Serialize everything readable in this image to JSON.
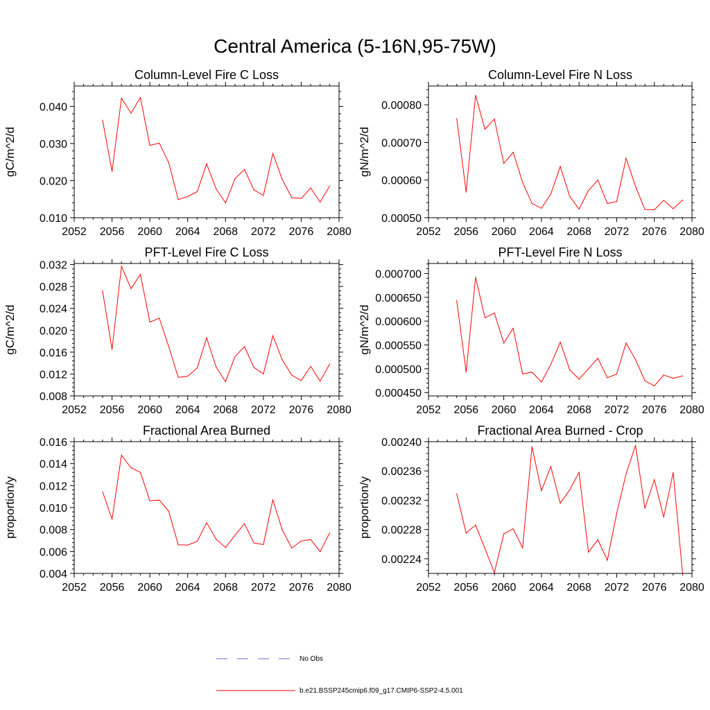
{
  "figure_title": "Central America (5-16N,95-75W)",
  "legend": {
    "entries": [
      {
        "label": "No Obs",
        "color": "#6a6ad8",
        "dash": true
      },
      {
        "label": "b.e21.BSSP245cmip6.f09_g17.CMIP6-SSP2-4.5.001",
        "color": "#ff0000",
        "dash": false
      }
    ]
  },
  "colors": {
    "series": "#ff0000",
    "frame": "#000000"
  },
  "chart_data": [
    {
      "type": "line",
      "title": "Column-Level Fire C Loss",
      "xlabel": "",
      "ylabel": "gC/m^2/d",
      "xlim": [
        2052,
        2080
      ],
      "ylim": [
        0.01,
        0.0455
      ],
      "xticks": [
        2052,
        2056,
        2060,
        2064,
        2068,
        2072,
        2076,
        2080
      ],
      "xtick_labels": [
        "2052",
        "2056",
        "2060",
        "2064",
        "2068",
        "2072",
        "2076",
        "2080"
      ],
      "yticks": [
        0.01,
        0.02,
        0.03,
        0.04
      ],
      "ytick_labels": [
        "0.010",
        "0.020",
        "0.030",
        "0.040"
      ],
      "x": [
        2055,
        2056,
        2057,
        2058,
        2059,
        2060,
        2061,
        2062,
        2063,
        2064,
        2065,
        2066,
        2067,
        2068,
        2069,
        2070,
        2071,
        2072,
        2073,
        2074,
        2075,
        2076,
        2077,
        2078,
        2079
      ],
      "y": [
        0.0363,
        0.0225,
        0.0422,
        0.0382,
        0.0424,
        0.0295,
        0.0301,
        0.0248,
        0.0149,
        0.0157,
        0.017,
        0.0245,
        0.0178,
        0.014,
        0.0205,
        0.023,
        0.0175,
        0.016,
        0.0273,
        0.0203,
        0.0154,
        0.0152,
        0.018,
        0.0142,
        0.0185
      ]
    },
    {
      "type": "line",
      "title": "Column-Level Fire N Loss",
      "xlabel": "",
      "ylabel": "gN/m^2/d",
      "xlim": [
        2052,
        2080
      ],
      "ylim": [
        0.0005,
        0.00085
      ],
      "xticks": [
        2052,
        2056,
        2060,
        2064,
        2068,
        2072,
        2076,
        2080
      ],
      "xtick_labels": [
        "2052",
        "2056",
        "2060",
        "2064",
        "2068",
        "2072",
        "2076",
        "2080"
      ],
      "yticks": [
        0.0005,
        0.0006,
        0.0007,
        0.0008
      ],
      "ytick_labels": [
        "0.00050",
        "0.00060",
        "0.00070",
        "0.00080"
      ],
      "x": [
        2055,
        2056,
        2057,
        2058,
        2059,
        2060,
        2061,
        2062,
        2063,
        2064,
        2065,
        2066,
        2067,
        2068,
        2069,
        2070,
        2071,
        2072,
        2073,
        2074,
        2075,
        2076,
        2077,
        2078,
        2079
      ],
      "y": [
        0.000763,
        0.000568,
        0.000825,
        0.000735,
        0.000762,
        0.000644,
        0.000674,
        0.000594,
        0.000538,
        0.000525,
        0.000563,
        0.000636,
        0.000557,
        0.000523,
        0.000572,
        0.0006,
        0.000538,
        0.000543,
        0.000658,
        0.000583,
        0.000522,
        0.000521,
        0.000546,
        0.000524,
        0.000547
      ]
    },
    {
      "type": "line",
      "title": "PFT-Level Fire C Loss",
      "xlabel": "",
      "ylabel": "gC/m^2/d",
      "xlim": [
        2052,
        2080
      ],
      "ylim": [
        0.008,
        0.0322
      ],
      "xticks": [
        2052,
        2056,
        2060,
        2064,
        2068,
        2072,
        2076,
        2080
      ],
      "xtick_labels": [
        "2052",
        "2056",
        "2060",
        "2064",
        "2068",
        "2072",
        "2076",
        "2080"
      ],
      "yticks": [
        0.008,
        0.012,
        0.016,
        0.02,
        0.024,
        0.028,
        0.032
      ],
      "ytick_labels": [
        "0.008",
        "0.012",
        "0.016",
        "0.020",
        "0.024",
        "0.028",
        "0.032"
      ],
      "x": [
        2055,
        2056,
        2057,
        2058,
        2059,
        2060,
        2061,
        2062,
        2063,
        2064,
        2065,
        2066,
        2067,
        2068,
        2069,
        2070,
        2071,
        2072,
        2073,
        2074,
        2075,
        2076,
        2077,
        2078,
        2079
      ],
      "y": [
        0.0272,
        0.0165,
        0.0317,
        0.0276,
        0.0302,
        0.0215,
        0.0222,
        0.017,
        0.0114,
        0.0116,
        0.0131,
        0.0186,
        0.0133,
        0.0106,
        0.0152,
        0.017,
        0.0132,
        0.012,
        0.019,
        0.0146,
        0.0118,
        0.0108,
        0.0134,
        0.0107,
        0.0138
      ]
    },
    {
      "type": "line",
      "title": "PFT-Level Fire N Loss",
      "xlabel": "",
      "ylabel": "gN/m^2/d",
      "xlim": [
        2052,
        2080
      ],
      "ylim": [
        0.000443,
        0.000721
      ],
      "xticks": [
        2052,
        2056,
        2060,
        2064,
        2068,
        2072,
        2076,
        2080
      ],
      "xtick_labels": [
        "2052",
        "2056",
        "2060",
        "2064",
        "2068",
        "2072",
        "2076",
        "2080"
      ],
      "yticks": [
        0.00045,
        0.0005,
        0.00055,
        0.0006,
        0.00065,
        0.0007
      ],
      "ytick_labels": [
        "0.000450",
        "0.000500",
        "0.000550",
        "0.000600",
        "0.000650",
        "0.000700"
      ],
      "x": [
        2055,
        2056,
        2057,
        2058,
        2059,
        2060,
        2061,
        2062,
        2063,
        2064,
        2065,
        2066,
        2067,
        2068,
        2069,
        2070,
        2071,
        2072,
        2073,
        2074,
        2075,
        2076,
        2077,
        2078,
        2079
      ],
      "y": [
        0.000643,
        0.000493,
        0.000692,
        0.000607,
        0.000617,
        0.000554,
        0.000585,
        0.000489,
        0.000493,
        0.000472,
        0.000509,
        0.000556,
        0.000498,
        0.000478,
        0.0005,
        0.000522,
        0.000481,
        0.000489,
        0.000554,
        0.000519,
        0.000475,
        0.000464,
        0.000487,
        0.00048,
        0.000485
      ]
    },
    {
      "type": "line",
      "title": "Fractional Area Burned",
      "xlabel": "",
      "ylabel": "proportion/y",
      "xlim": [
        2052,
        2080
      ],
      "ylim": [
        0.004,
        0.016
      ],
      "xticks": [
        2052,
        2056,
        2060,
        2064,
        2068,
        2072,
        2076,
        2080
      ],
      "xtick_labels": [
        "2052",
        "2056",
        "2060",
        "2064",
        "2068",
        "2072",
        "2076",
        "2080"
      ],
      "yticks": [
        0.004,
        0.006,
        0.008,
        0.01,
        0.012,
        0.014,
        0.016
      ],
      "ytick_labels": [
        "0.004",
        "0.006",
        "0.008",
        "0.010",
        "0.012",
        "0.014",
        "0.016"
      ],
      "x": [
        2055,
        2056,
        2057,
        2058,
        2059,
        2060,
        2061,
        2062,
        2063,
        2064,
        2065,
        2066,
        2067,
        2068,
        2069,
        2070,
        2071,
        2072,
        2073,
        2074,
        2075,
        2076,
        2077,
        2078,
        2079
      ],
      "y": [
        0.01145,
        0.00893,
        0.01477,
        0.01363,
        0.0132,
        0.01062,
        0.01068,
        0.00966,
        0.0066,
        0.00658,
        0.00692,
        0.00862,
        0.00712,
        0.00636,
        0.00747,
        0.00852,
        0.00677,
        0.00663,
        0.0107,
        0.00796,
        0.00631,
        0.00695,
        0.00708,
        0.00598,
        0.00768
      ]
    },
    {
      "type": "line",
      "title": "Fractional Area Burned - Crop",
      "xlabel": "",
      "ylabel": "proportion/y",
      "xlim": [
        2052,
        2080
      ],
      "ylim": [
        0.00222,
        0.0024
      ],
      "xticks": [
        2052,
        2056,
        2060,
        2064,
        2068,
        2072,
        2076,
        2080
      ],
      "xtick_labels": [
        "2052",
        "2056",
        "2060",
        "2064",
        "2068",
        "2072",
        "2076",
        "2080"
      ],
      "yticks": [
        0.00224,
        0.00228,
        0.00232,
        0.00236,
        0.0024
      ],
      "ytick_labels": [
        "0.00224",
        "0.00228",
        "0.00232",
        "0.00236",
        "0.00240"
      ],
      "x": [
        2055,
        2056,
        2057,
        2058,
        2059,
        2060,
        2061,
        2062,
        2063,
        2064,
        2065,
        2066,
        2067,
        2068,
        2069,
        2070,
        2071,
        2072,
        2073,
        2074,
        2075,
        2076,
        2077,
        2078,
        2079
      ],
      "y": [
        0.002329,
        0.002275,
        0.002286,
        0.002254,
        0.002221,
        0.002274,
        0.002281,
        0.002255,
        0.002393,
        0.002333,
        0.002366,
        0.002316,
        0.002334,
        0.002358,
        0.002249,
        0.002266,
        0.002238,
        0.002302,
        0.002356,
        0.002395,
        0.002309,
        0.002348,
        0.002297,
        0.002358,
        0.00222
      ]
    }
  ]
}
